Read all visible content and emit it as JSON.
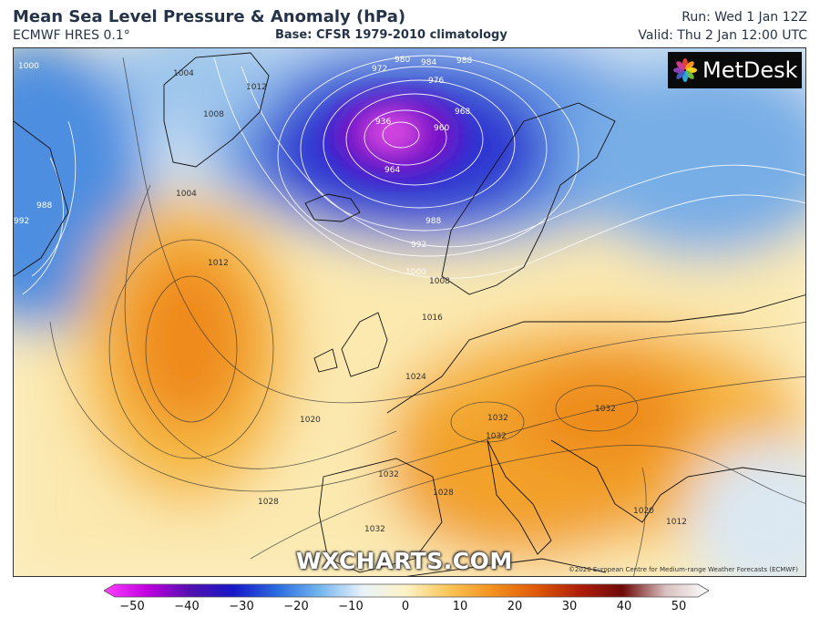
{
  "header": {
    "title": "Mean Sea Level Pressure & Anomaly (hPa)",
    "model": "ECMWF HRES 0.1°",
    "base": "Base: CFSR 1979-2010 climatology",
    "run": "Run: Wed 1 Jan 12Z",
    "valid": "Valid: Thu 2 Jan 12:00 UTC"
  },
  "logo": {
    "text": "MetDesk"
  },
  "watermark": "WXCHARTS.COM",
  "copyright": "©2020 European Centre for Medium-range Weather Forecasts (ECMWF)",
  "map": {
    "isobar_labels": [
      "1000",
      "1004",
      "1008",
      "1012",
      "972",
      "980",
      "984",
      "988",
      "976",
      "968",
      "936",
      "960",
      "964",
      "988",
      "992",
      "1000",
      "1008",
      "1016",
      "988",
      "992",
      "1004",
      "1012",
      "1024",
      "1020",
      "1028",
      "1032",
      "1032",
      "1032",
      "1032",
      "1032",
      "1028",
      "1020",
      "1012"
    ],
    "colors": {
      "deep_low": "#a00fd0",
      "low": "#2e2ad0",
      "blue": "#3e78d8",
      "light_blue": "#bcd8ef",
      "neutral": "#f4f2ea",
      "yellow": "#fbe7a3",
      "orange": "#f5a623",
      "dark_orange": "#e66a10"
    }
  },
  "colorbar": {
    "ticks": [
      "−50",
      "−40",
      "−30",
      "−20",
      "−10",
      "0",
      "10",
      "20",
      "30",
      "40",
      "50"
    ],
    "colors": [
      "#ff40ff",
      "#c000e0",
      "#5010b0",
      "#1818c8",
      "#2a6be0",
      "#74b6ee",
      "#eaf3fa",
      "#fdf2c4",
      "#f9c455",
      "#f3901e",
      "#e05a0a",
      "#b01e08",
      "#6e0a08",
      "#d8c0c0",
      "#ffffff"
    ]
  }
}
